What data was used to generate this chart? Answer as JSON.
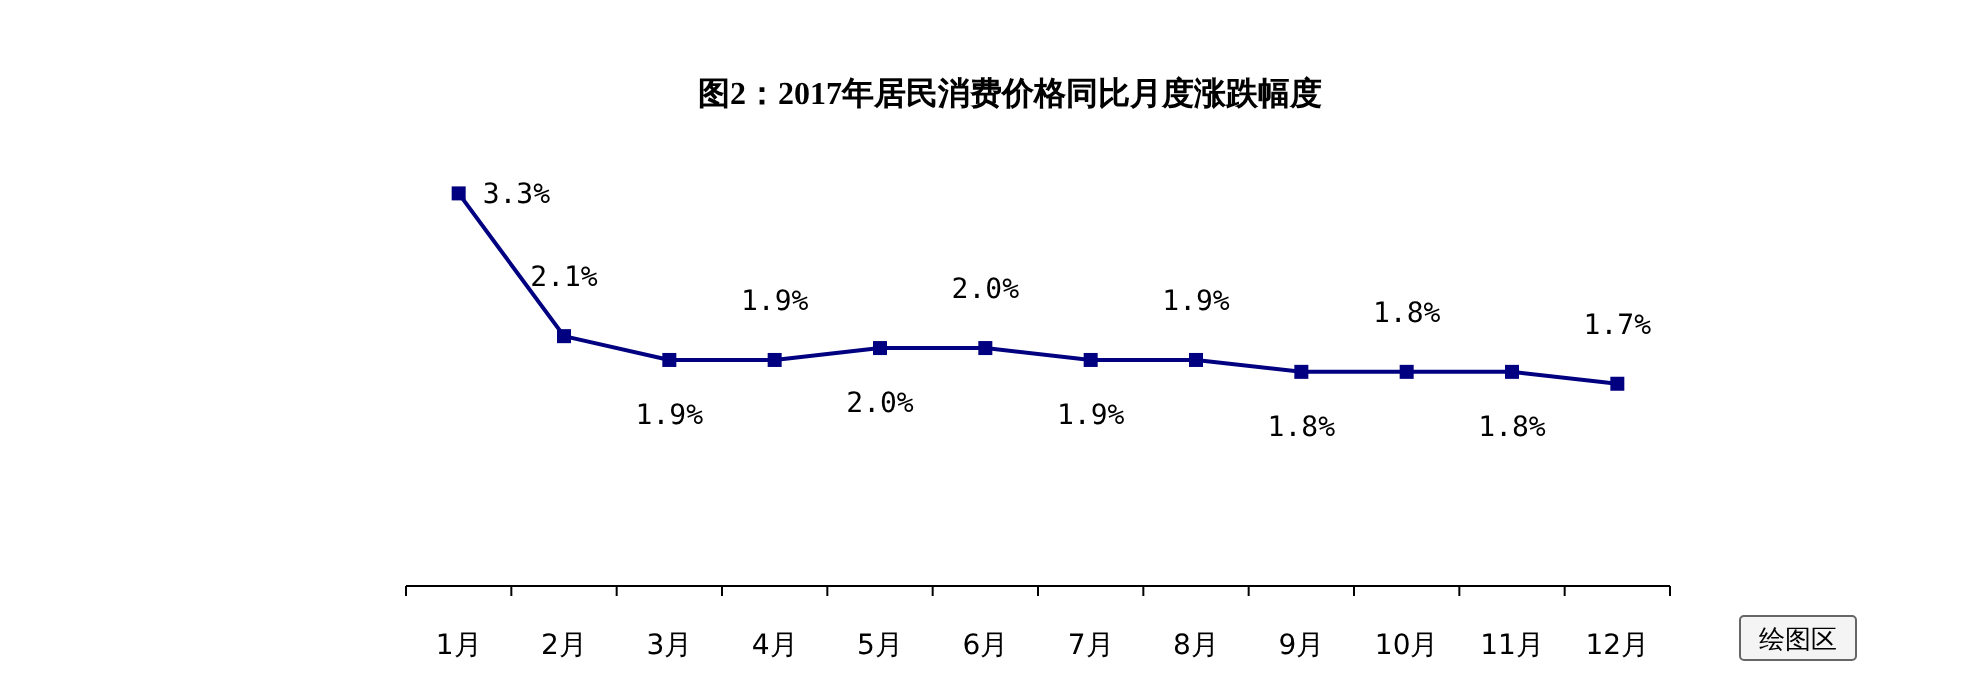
{
  "chart_data": {
    "type": "line",
    "title": "图2：2017年居民消费价格同比月度涨跌幅度",
    "categories": [
      "1月",
      "2月",
      "3月",
      "4月",
      "5月",
      "6月",
      "7月",
      "8月",
      "9月",
      "10月",
      "11月",
      "12月"
    ],
    "series": [
      {
        "color": "#000080",
        "values": [
          3.3,
          2.1,
          1.9,
          1.9,
          2.0,
          2.0,
          1.9,
          1.9,
          1.8,
          1.8,
          1.8,
          1.7
        ],
        "value_labels": [
          "3.3%",
          "2.1%",
          "1.9%",
          "1.9%",
          "2.0%",
          "2.0%",
          "1.9%",
          "1.9%",
          "1.8%",
          "1.8%",
          "1.8%",
          "1.7%"
        ]
      }
    ],
    "marker": "square",
    "annotations": [
      "绘图区"
    ]
  }
}
